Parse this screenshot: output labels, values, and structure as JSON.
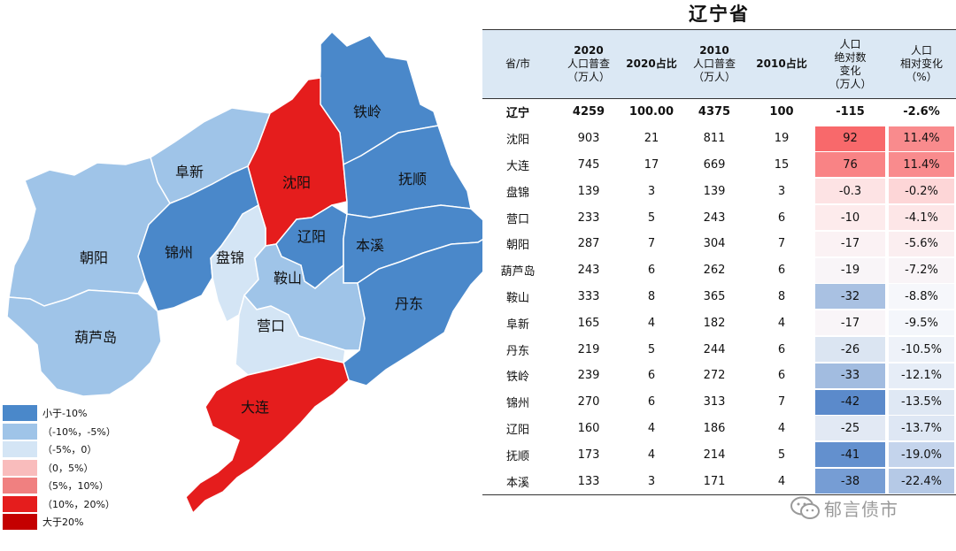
{
  "title": "辽宁省",
  "map": {
    "cities": [
      {
        "name": "铁岭",
        "color": "#4a88ca"
      },
      {
        "name": "沈阳",
        "color": "#e51d1d"
      },
      {
        "name": "阜新",
        "color": "#9fc4e8"
      },
      {
        "name": "抚顺",
        "color": "#4a88ca"
      },
      {
        "name": "朝阳",
        "color": "#9fc4e8"
      },
      {
        "name": "锦州",
        "color": "#4a88ca"
      },
      {
        "name": "盘锦",
        "color": "#d4e5f5"
      },
      {
        "name": "辽阳",
        "color": "#4a88ca"
      },
      {
        "name": "本溪",
        "color": "#4a88ca"
      },
      {
        "name": "鞍山",
        "color": "#9fc4e8"
      },
      {
        "name": "丹东",
        "color": "#4a88ca"
      },
      {
        "name": "葫芦岛",
        "color": "#9fc4e8"
      },
      {
        "name": "营口",
        "color": "#d4e5f5"
      },
      {
        "name": "大连",
        "color": "#e51d1d"
      }
    ]
  },
  "legend": [
    {
      "label": "小于-10%",
      "color": "#4a88ca"
    },
    {
      "label": "（-10%，-5%）",
      "color": "#9fc4e8"
    },
    {
      "label": "（-5%，0）",
      "color": "#d4e5f5"
    },
    {
      "label": "（0，5%）",
      "color": "#f9bcbc"
    },
    {
      "label": "（5%，10%）",
      "color": "#f08080"
    },
    {
      "label": "（10%，20%）",
      "color": "#e51d1d"
    },
    {
      "label": "大于20%",
      "color": "#c40000"
    }
  ],
  "chart_data": {
    "type": "table",
    "title": "辽宁省",
    "columns": [
      {
        "top": "",
        "lines": [
          "省/市"
        ]
      },
      {
        "top": "2020",
        "lines": [
          "人口普查",
          "（万人）"
        ]
      },
      {
        "top": "2020占比",
        "lines": []
      },
      {
        "top": "2010",
        "lines": [
          "人口普查",
          "（万人）"
        ]
      },
      {
        "top": "2010占比",
        "lines": []
      },
      {
        "top": "",
        "lines": [
          "人口",
          "绝对数",
          "变化",
          "（万人）"
        ]
      },
      {
        "top": "",
        "lines": [
          "人口",
          "相对变化",
          "（%）"
        ]
      }
    ],
    "rows": [
      {
        "name": "辽宁",
        "pop2020": "4259",
        "share2020": "100.00",
        "pop2010": "4375",
        "share2010": "100",
        "abs": "-115",
        "rel": "-2.6%",
        "abs_color": "#ffffff",
        "rel_color": "#ffffff"
      },
      {
        "name": "沈阳",
        "pop2020": "903",
        "share2020": "21",
        "pop2010": "811",
        "share2010": "19",
        "abs": "92",
        "rel": "11.4%",
        "abs_color": "#f8696b",
        "rel_color": "#f98b8d"
      },
      {
        "name": "大连",
        "pop2020": "745",
        "share2020": "17",
        "pop2010": "669",
        "share2010": "15",
        "abs": "76",
        "rel": "11.4%",
        "abs_color": "#f98385",
        "rel_color": "#f98b8d"
      },
      {
        "name": "盘锦",
        "pop2020": "139",
        "share2020": "3",
        "pop2010": "139",
        "share2010": "3",
        "abs": "-0.3",
        "rel": "-0.2%",
        "abs_color": "#fde3e4",
        "rel_color": "#fdd6d7"
      },
      {
        "name": "营口",
        "pop2020": "233",
        "share2020": "5",
        "pop2010": "243",
        "share2010": "6",
        "abs": "-10",
        "rel": "-4.1%",
        "abs_color": "#fdebec",
        "rel_color": "#fde6e7"
      },
      {
        "name": "朝阳",
        "pop2020": "287",
        "share2020": "7",
        "pop2010": "304",
        "share2010": "7",
        "abs": "-17",
        "rel": "-5.6%",
        "abs_color": "#fbf2f4",
        "rel_color": "#fbeef0"
      },
      {
        "name": "葫芦岛",
        "pop2020": "243",
        "share2020": "6",
        "pop2010": "262",
        "share2010": "6",
        "abs": "-19",
        "rel": "-7.2%",
        "abs_color": "#f9f5f8",
        "rel_color": "#f9f4f7"
      },
      {
        "name": "鞍山",
        "pop2020": "333",
        "share2020": "8",
        "pop2010": "365",
        "share2010": "8",
        "abs": "-32",
        "rel": "-8.8%",
        "abs_color": "#a9c1e2",
        "rel_color": "#f6f7fb"
      },
      {
        "name": "阜新",
        "pop2020": "165",
        "share2020": "4",
        "pop2010": "182",
        "share2010": "4",
        "abs": "-17",
        "rel": "-9.5%",
        "abs_color": "#f9f5f8",
        "rel_color": "#f4f6fb"
      },
      {
        "name": "丹东",
        "pop2020": "219",
        "share2020": "5",
        "pop2010": "244",
        "share2010": "6",
        "abs": "-26",
        "rel": "-10.5%",
        "abs_color": "#dbe5f2",
        "rel_color": "#eef2f9"
      },
      {
        "name": "铁岭",
        "pop2020": "239",
        "share2020": "6",
        "pop2010": "272",
        "share2010": "6",
        "abs": "-33",
        "rel": "-12.1%",
        "abs_color": "#a2bce0",
        "rel_color": "#e6edf7"
      },
      {
        "name": "锦州",
        "pop2020": "270",
        "share2020": "6",
        "pop2010": "313",
        "share2010": "7",
        "abs": "-42",
        "rel": "-13.5%",
        "abs_color": "#5b8acb",
        "rel_color": "#dfe8f4"
      },
      {
        "name": "辽阳",
        "pop2020": "160",
        "share2020": "4",
        "pop2010": "186",
        "share2010": "4",
        "abs": "-25",
        "rel": "-13.7%",
        "abs_color": "#e2e9f4",
        "rel_color": "#dee7f4"
      },
      {
        "name": "抚顺",
        "pop2020": "173",
        "share2020": "4",
        "pop2010": "214",
        "share2010": "5",
        "abs": "-41",
        "rel": "-19.0%",
        "abs_color": "#6390ce",
        "rel_color": "#c4d4ec"
      },
      {
        "name": "本溪",
        "pop2020": "133",
        "share2020": "3",
        "pop2010": "171",
        "share2010": "4",
        "abs": "-38",
        "rel": "-22.4%",
        "abs_color": "#769dd4",
        "rel_color": "#b5c9e6"
      }
    ]
  },
  "watermark": "郁言债市"
}
